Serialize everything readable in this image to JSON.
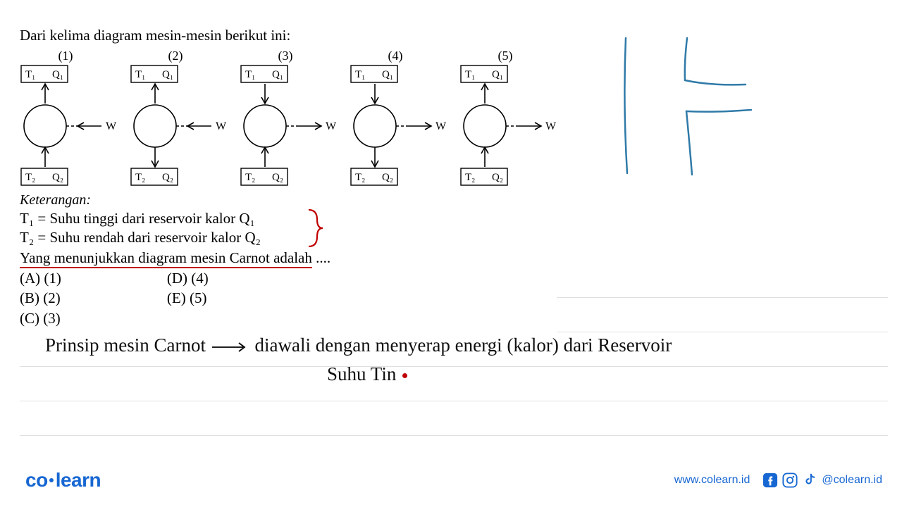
{
  "title": "Dari kelima diagram mesin-mesin berikut ini:",
  "diagrams": [
    {
      "n": "(1)",
      "q1": "up",
      "q2": "up",
      "w": "left"
    },
    {
      "n": "(2)",
      "q1": "up",
      "q2": "down",
      "w": "left"
    },
    {
      "n": "(3)",
      "q1": "down",
      "q2": "up",
      "w": "right"
    },
    {
      "n": "(4)",
      "q1": "down",
      "q2": "down",
      "w": "right"
    },
    {
      "n": "(5)",
      "q1": "up",
      "q2": "up",
      "w": "right"
    }
  ],
  "labels": {
    "T1": "T₁",
    "Q1": "Q₁",
    "T2": "T₂",
    "Q2": "Q₂",
    "W": "W"
  },
  "keterangan": {
    "head": "Keterangan:",
    "l1": "T₁ = Suhu tinggi dari reservoir kalor Q₁",
    "l2": "T₂ = Suhu rendah dari reservoir kalor Q₂"
  },
  "question_u": "Yang  menunjukkan  diagram  mesin  Carnot  adalah",
  "question_tail": " ....",
  "options_left": [
    "(A)  (1)",
    "(B)  (2)",
    "(C)  (3)"
  ],
  "options_right": [
    "(D) (4)",
    "(E) (5)"
  ],
  "hand": {
    "l1a": "Prinsip  mesin Carnot ",
    "l1b": " diawali  dengan   menyerap  energi  (kalor)  dari  Reservoir",
    "l2": "Suhu Tin",
    "dot_color": "#c00000"
  },
  "sketch_color": "#2f7aa8",
  "bracket_color": "#c00000",
  "stroke": "#000000",
  "footer": {
    "url": "www.colearn.id",
    "handle": "@colearn.id",
    "brand_a": "co",
    "brand_b": "learn",
    "brand_color": "#1767d2"
  }
}
